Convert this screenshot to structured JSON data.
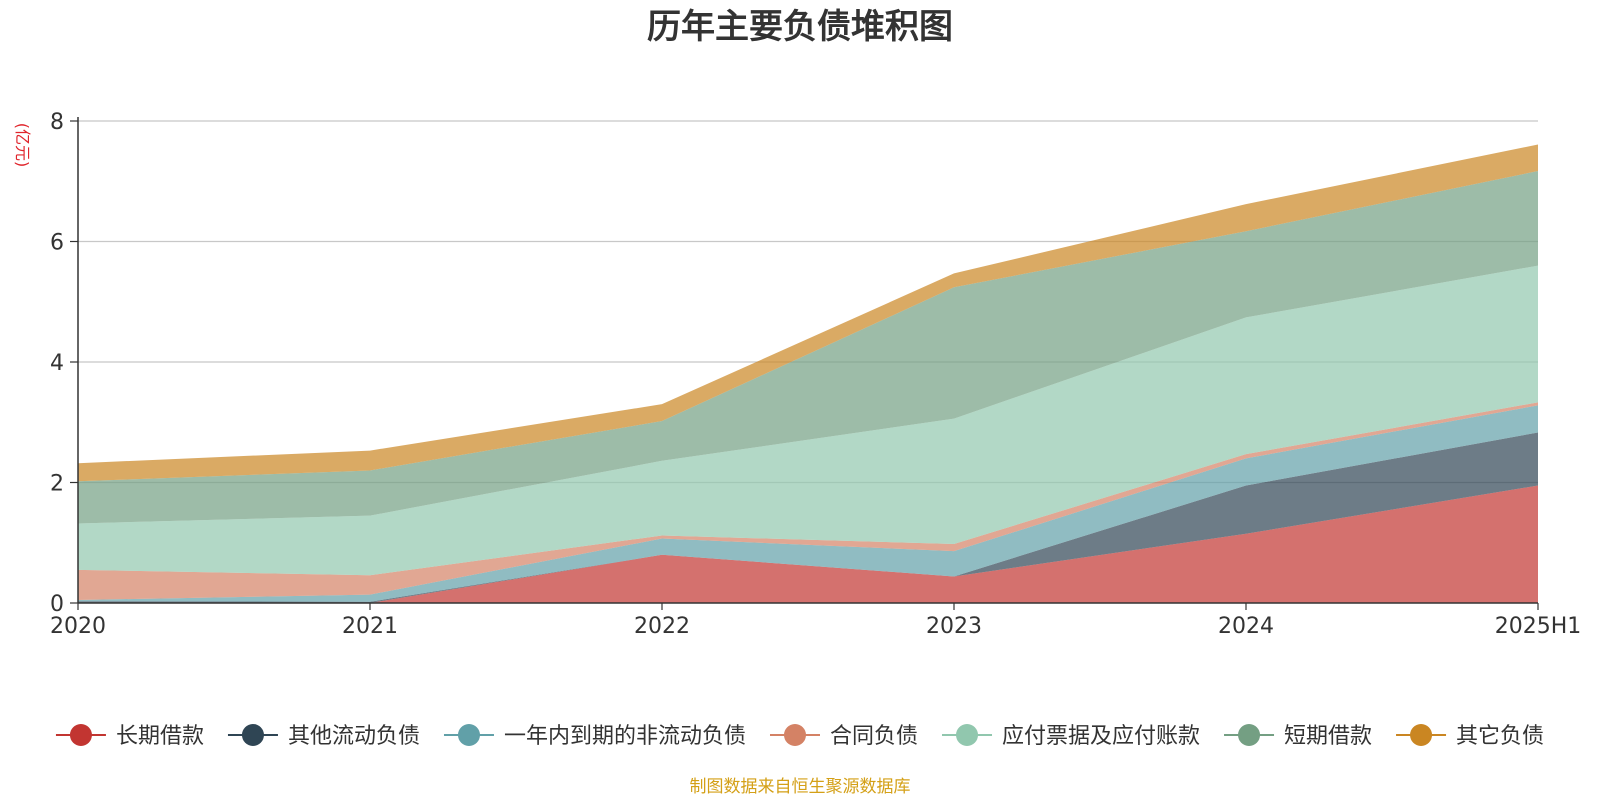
{
  "chart_data": {
    "type": "area",
    "title": "历年主要负债堆积图",
    "unit": "(亿元)",
    "source": "制图数据来自恒生聚源数据库",
    "x": [
      "2020",
      "2021",
      "2022",
      "2023",
      "2024",
      "2025H1"
    ],
    "ylim": [
      0,
      8
    ],
    "yticks": [
      0,
      2,
      4,
      6,
      8
    ],
    "grid": true,
    "legend_position": "bottom",
    "series": [
      {
        "name": "长期借款",
        "color": "#c23531",
        "values": [
          0,
          0,
          0.8,
          0.44,
          1.15,
          1.95
        ]
      },
      {
        "name": "其他流动负债",
        "color": "#2f4554",
        "values": [
          0.03,
          0.02,
          0,
          0,
          0.8,
          0.88
        ]
      },
      {
        "name": "一年内到期的非流动负债",
        "color": "#61a0a8",
        "values": [
          0.02,
          0.12,
          0.27,
          0.42,
          0.45,
          0.45
        ]
      },
      {
        "name": "合同负债",
        "color": "#d48265",
        "values": [
          0.5,
          0.32,
          0.05,
          0.12,
          0.07,
          0.05
        ]
      },
      {
        "name": "应付票据及应付账款",
        "color": "#91c7ae",
        "values": [
          0.77,
          0.99,
          1.24,
          2.08,
          2.27,
          2.27
        ]
      },
      {
        "name": "短期借款",
        "color": "#749f83",
        "values": [
          0.7,
          0.75,
          0.66,
          2.18,
          1.43,
          1.57
        ]
      },
      {
        "name": "其它负债",
        "color": "#ca8622",
        "values": [
          0.3,
          0.33,
          0.28,
          0.23,
          0.45,
          0.44
        ]
      }
    ]
  }
}
